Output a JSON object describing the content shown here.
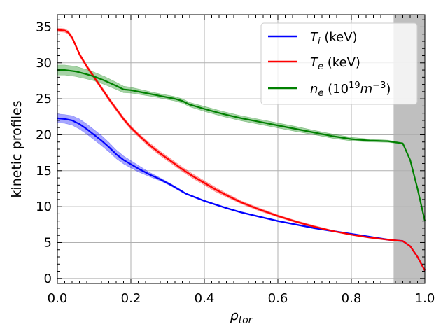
{
  "chart_data": {
    "type": "line",
    "title": "",
    "xlabel": "ρ",
    "xlabel_sub": "tor",
    "ylabel": "kinetic profiles",
    "xlim": [
      0.0,
      1.0
    ],
    "ylim": [
      -0.7,
      36.7
    ],
    "grid": true,
    "shaded_region": {
      "x_start": 0.915,
      "x_end": 1.0,
      "color": "#bfbfbf"
    },
    "x_ticks": [
      0.0,
      0.2,
      0.4,
      0.6,
      0.8,
      1.0
    ],
    "x_tick_labels": [
      "0.0",
      "0.2",
      "0.4",
      "0.6",
      "0.8",
      "1.0"
    ],
    "y_ticks": [
      0,
      5,
      10,
      15,
      20,
      25,
      30,
      35
    ],
    "y_tick_labels": [
      "0",
      "5",
      "10",
      "15",
      "20",
      "25",
      "30",
      "35"
    ],
    "legend": {
      "position": "top-right"
    },
    "series": [
      {
        "name": "Ti",
        "legend_main": "T",
        "legend_sub": "i",
        "legend_unit": " (keV)",
        "color": "#0000ff",
        "band_color": "#0000ff",
        "x": [
          0.0,
          0.02,
          0.04,
          0.06,
          0.08,
          0.1,
          0.12,
          0.14,
          0.16,
          0.18,
          0.2,
          0.22,
          0.25,
          0.28,
          0.31,
          0.33,
          0.35,
          0.38,
          0.4,
          0.43,
          0.46,
          0.5,
          0.55,
          0.6,
          0.65,
          0.7,
          0.75,
          0.8,
          0.85,
          0.9,
          0.94,
          0.96,
          0.98,
          1.0
        ],
        "values": [
          22.3,
          22.2,
          22.0,
          21.5,
          20.8,
          20.0,
          19.2,
          18.3,
          17.3,
          16.5,
          15.9,
          15.3,
          14.5,
          13.8,
          13.0,
          12.4,
          11.8,
          11.2,
          10.8,
          10.3,
          9.8,
          9.2,
          8.6,
          8.0,
          7.5,
          7.0,
          6.6,
          6.2,
          5.8,
          5.4,
          5.2,
          4.5,
          3.0,
          1.1
        ],
        "band": [
          0.6,
          0.6,
          0.65,
          0.7,
          0.7,
          0.7,
          0.7,
          0.65,
          0.6,
          0.55,
          0.5,
          0.45,
          0.3,
          0.2,
          0.15,
          0.15,
          0.1,
          0.1,
          0.1,
          0.1,
          0.1,
          0.1,
          0.1,
          0.1,
          0.1,
          0.1,
          0.1,
          0.1,
          0.1,
          0.1,
          0.1,
          0.1,
          0.1,
          0.1
        ]
      },
      {
        "name": "Te",
        "legend_main": "T",
        "legend_sub": "e",
        "legend_unit": " (keV)",
        "color": "#ff0000",
        "band_color": "#ff0000",
        "x": [
          0.0,
          0.02,
          0.03,
          0.04,
          0.05,
          0.06,
          0.08,
          0.1,
          0.12,
          0.14,
          0.16,
          0.18,
          0.2,
          0.22,
          0.25,
          0.28,
          0.31,
          0.34,
          0.37,
          0.4,
          0.43,
          0.46,
          0.5,
          0.55,
          0.6,
          0.65,
          0.7,
          0.75,
          0.8,
          0.85,
          0.9,
          0.94,
          0.96,
          0.98,
          1.0
        ],
        "values": [
          34.6,
          34.5,
          34.2,
          33.5,
          32.4,
          31.2,
          29.5,
          28.0,
          26.5,
          25.0,
          23.6,
          22.2,
          21.0,
          20.0,
          18.6,
          17.4,
          16.3,
          15.2,
          14.2,
          13.3,
          12.4,
          11.6,
          10.6,
          9.6,
          8.7,
          7.9,
          7.2,
          6.6,
          6.1,
          5.7,
          5.4,
          5.2,
          4.5,
          3.0,
          1.1
        ],
        "band": [
          0.25,
          0.25,
          0.25,
          0.25,
          0.25,
          0.25,
          0.25,
          0.25,
          0.25,
          0.25,
          0.25,
          0.25,
          0.25,
          0.25,
          0.3,
          0.3,
          0.3,
          0.3,
          0.3,
          0.3,
          0.3,
          0.25,
          0.2,
          0.2,
          0.15,
          0.15,
          0.15,
          0.1,
          0.1,
          0.1,
          0.1,
          0.1,
          0.1,
          0.1,
          0.1
        ]
      },
      {
        "name": "ne",
        "legend_main": "n",
        "legend_sub": "e",
        "legend_unit": " (10",
        "legend_sup": "19",
        "legend_tail": "m",
        "legend_tail_sup": "−3",
        "legend_close": ")",
        "color": "#008000",
        "band_color": "#008000",
        "x": [
          0.0,
          0.02,
          0.05,
          0.08,
          0.1,
          0.13,
          0.16,
          0.18,
          0.2,
          0.23,
          0.26,
          0.29,
          0.32,
          0.34,
          0.36,
          0.4,
          0.45,
          0.5,
          0.55,
          0.6,
          0.65,
          0.7,
          0.75,
          0.8,
          0.85,
          0.9,
          0.94,
          0.96,
          0.98,
          1.0
        ],
        "values": [
          29.0,
          29.0,
          28.8,
          28.4,
          28.1,
          27.5,
          26.8,
          26.3,
          26.2,
          25.9,
          25.6,
          25.3,
          25.0,
          24.7,
          24.2,
          23.6,
          22.9,
          22.3,
          21.8,
          21.3,
          20.8,
          20.3,
          19.8,
          19.4,
          19.2,
          19.1,
          18.8,
          16.5,
          12.5,
          8.0
        ],
        "band": [
          0.7,
          0.7,
          0.7,
          0.65,
          0.6,
          0.55,
          0.5,
          0.45,
          0.4,
          0.35,
          0.3,
          0.3,
          0.3,
          0.3,
          0.3,
          0.35,
          0.35,
          0.35,
          0.35,
          0.35,
          0.35,
          0.3,
          0.3,
          0.25,
          0.2,
          0.15,
          0.1,
          0.1,
          0.1,
          0.1
        ]
      }
    ]
  }
}
